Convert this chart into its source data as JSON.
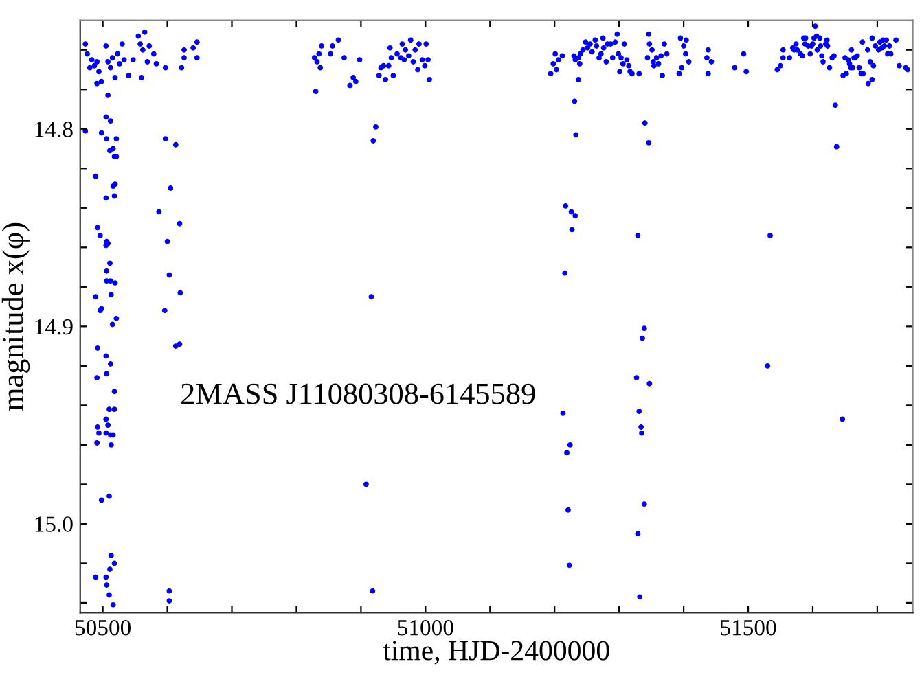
{
  "chart_data": {
    "type": "scatter",
    "xlabel": "time, HJD-2400000",
    "ylabel": "magnitude x(φ)",
    "annotations": [
      "2MASS J11080308-6145589"
    ],
    "xlim": [
      50465,
      51755
    ],
    "ylim": [
      15.045,
      14.745
    ],
    "xticks": [
      50500,
      {
        "value": 50600,
        "label": null
      },
      {
        "value": 50700,
        "label": null
      },
      {
        "value": 50800,
        "label": null
      },
      {
        "value": 50900,
        "label": null
      },
      51000,
      {
        "value": 51100,
        "label": null
      },
      {
        "value": 51200,
        "label": null
      },
      {
        "value": 51300,
        "label": null
      },
      {
        "value": 51400,
        "label": null
      },
      51500,
      {
        "value": 51600,
        "label": null
      },
      {
        "value": 51700,
        "label": null
      }
    ],
    "yticks": [
      {
        "value": 14.76,
        "label": null
      },
      {
        "value": 14.78,
        "label": null
      },
      {
        "value": 14.8,
        "label": "14.8"
      },
      {
        "value": 14.82,
        "label": null
      },
      {
        "value": 14.84,
        "label": null
      },
      {
        "value": 14.86,
        "label": null
      },
      {
        "value": 14.88,
        "label": null
      },
      {
        "value": 14.9,
        "label": "14.9"
      },
      {
        "value": 14.92,
        "label": null
      },
      {
        "value": 14.94,
        "label": null
      },
      {
        "value": 14.96,
        "label": null
      },
      {
        "value": 14.98,
        "label": null
      },
      {
        "value": 15.0,
        "label": "15.0"
      },
      {
        "value": 15.02,
        "label": null
      },
      {
        "value": 15.04,
        "label": null
      }
    ],
    "grid": false,
    "marker": "circle",
    "series": [
      {
        "color": "#0000ff",
        "x": [
          50473,
          50476,
          50483,
          50487,
          50480,
          50491,
          50494,
          50491,
          50498,
          50505,
          50508,
          50512,
          50515,
          50519,
          50523,
          50526,
          50530,
          50533,
          50508,
          50540,
          50547,
          50555,
          50558,
          50562,
          50565,
          50569,
          50572,
          50579,
          50583,
          50560,
          50597,
          50622,
          50626,
          50626,
          50640,
          50646,
          50646,
          50505,
          50512,
          50473,
          50498,
          50506,
          50521,
          50516,
          50511,
          50518,
          50521,
          50489,
          50519,
          50516,
          50505,
          50518,
          50492,
          50496,
          50506,
          50508,
          50505,
          50511,
          50506,
          50506,
          50512,
          50519,
          50513,
          50489,
          50498,
          50496,
          50521,
          50515,
          50492,
          50505,
          50512,
          50506,
          50491,
          50518,
          50510,
          50518,
          50505,
          50508,
          50492,
          50494,
          50505,
          50512,
          50516,
          50491,
          50513,
          50498,
          50510,
          50513,
          50518,
          50511,
          50489,
          50505,
          50506,
          50510,
          50516,
          50597,
          50613,
          50605,
          50587,
          50619,
          50600,
          50603,
          50620,
          50596,
          50619,
          50613,
          50603,
          50603,
          50828,
          50832,
          50835,
          50839,
          50837,
          50830,
          50853,
          50856,
          50865,
          50874,
          50898,
          50888,
          50892,
          50883,
          50928,
          50931,
          50935,
          50938,
          50945,
          50947,
          50943,
          50950,
          50956,
          50962,
          50964,
          50969,
          50974,
          50977,
          50981,
          50984,
          50988,
          50990,
          50995,
          50999,
          51001,
          51004,
          51006,
          50967,
          50923,
          50919,
          50916,
          50908,
          50918,
          51194,
          51198,
          51203,
          51201,
          51206,
          51212,
          51230,
          51232,
          51237,
          51239,
          51240,
          51244,
          51248,
          51251,
          51255,
          51258,
          51263,
          51265,
          51269,
          51272,
          51275,
          51276,
          51280,
          51282,
          51287,
          51290,
          51294,
          51297,
          51299,
          51301,
          51303,
          51306,
          51308,
          51312,
          51315,
          51317,
          51320,
          51331,
          51344,
          51346,
          51347,
          51351,
          51353,
          51354,
          51358,
          51361,
          51365,
          51367,
          51370,
          51374,
          51395,
          51400,
          51404,
          51403,
          51408,
          51393,
          51397,
          51436,
          51438,
          51443,
          51438,
          51237,
          51231,
          51233,
          51340,
          51346,
          51217,
          51226,
          51232,
          51227,
          51329,
          51216,
          51339,
          51336,
          51327,
          51347,
          51213,
          51331,
          51334,
          51335,
          51224,
          51219,
          51221,
          51339,
          51329,
          51223,
          51332,
          51479,
          51493,
          51497,
          51545,
          51550,
          51554,
          51554,
          51564,
          51569,
          51574,
          51576,
          51571,
          51581,
          51584,
          51586,
          51588,
          51589,
          51593,
          51596,
          51598,
          51600,
          51602,
          51604,
          51606,
          51607,
          51611,
          51612,
          51614,
          51616,
          51620,
          51622,
          51623,
          51626,
          51630,
          51633,
          51647,
          51650,
          51652,
          51655,
          51657,
          51659,
          51660,
          51662,
          51664,
          51666,
          51669,
          51672,
          51675,
          51678,
          51677,
          51685,
          51686,
          51689,
          51692,
          51692,
          51694,
          51697,
          51702,
          51704,
          51707,
          51709,
          51711,
          51714,
          51716,
          51719,
          51721,
          51729,
          51734,
          51744,
          51747,
          51635,
          51637,
          51534,
          51530,
          51646
        ],
        "values": [
          14.757,
          14.762,
          14.765,
          14.768,
          14.769,
          14.766,
          14.771,
          14.777,
          14.776,
          14.758,
          14.766,
          14.769,
          14.764,
          14.774,
          14.762,
          14.767,
          14.757,
          14.765,
          14.783,
          14.773,
          14.765,
          14.753,
          14.757,
          14.76,
          14.751,
          14.766,
          14.758,
          14.762,
          14.767,
          14.774,
          14.769,
          14.769,
          14.76,
          14.764,
          14.759,
          14.756,
          14.764,
          14.794,
          14.796,
          14.801,
          14.802,
          14.805,
          14.805,
          14.81,
          14.811,
          14.814,
          14.814,
          14.824,
          14.828,
          14.829,
          14.835,
          14.834,
          14.85,
          14.854,
          14.857,
          14.858,
          14.859,
          14.868,
          14.872,
          14.877,
          14.877,
          14.878,
          14.884,
          14.885,
          14.891,
          14.892,
          14.896,
          14.899,
          14.911,
          14.915,
          14.919,
          14.924,
          14.926,
          14.933,
          14.942,
          14.942,
          14.947,
          14.95,
          14.951,
          14.954,
          14.954,
          14.955,
          14.955,
          14.959,
          14.96,
          14.988,
          14.986,
          15.016,
          15.02,
          15.023,
          15.027,
          15.027,
          15.031,
          15.036,
          15.041,
          14.805,
          14.808,
          14.83,
          14.842,
          14.848,
          14.857,
          14.874,
          14.883,
          14.892,
          14.909,
          14.91,
          15.034,
          15.039,
          14.764,
          14.766,
          14.762,
          14.758,
          14.769,
          14.781,
          14.762,
          14.758,
          14.755,
          14.764,
          14.765,
          14.774,
          14.776,
          14.778,
          14.773,
          14.769,
          14.768,
          14.775,
          14.759,
          14.764,
          14.768,
          14.773,
          14.762,
          14.764,
          14.757,
          14.76,
          14.763,
          14.755,
          14.766,
          14.76,
          14.77,
          14.757,
          14.765,
          14.768,
          14.757,
          14.765,
          14.775,
          14.765,
          14.799,
          14.806,
          14.885,
          14.98,
          15.034,
          14.772,
          14.767,
          14.77,
          14.762,
          14.765,
          14.763,
          14.763,
          14.765,
          14.764,
          14.767,
          14.762,
          14.76,
          14.756,
          14.759,
          14.757,
          14.761,
          14.755,
          14.758,
          14.764,
          14.762,
          14.754,
          14.759,
          14.766,
          14.757,
          14.757,
          14.764,
          14.756,
          14.752,
          14.762,
          14.771,
          14.764,
          14.767,
          14.757,
          14.765,
          14.768,
          14.771,
          14.772,
          14.772,
          14.764,
          14.752,
          14.757,
          14.76,
          14.766,
          14.768,
          14.764,
          14.767,
          14.763,
          14.773,
          14.757,
          14.762,
          14.754,
          14.758,
          14.755,
          14.762,
          14.766,
          14.772,
          14.769,
          14.764,
          14.76,
          14.766,
          14.772,
          14.775,
          14.786,
          14.803,
          14.797,
          14.807,
          14.839,
          14.842,
          14.844,
          14.851,
          14.854,
          14.873,
          14.901,
          14.906,
          14.926,
          14.929,
          14.944,
          14.943,
          14.951,
          14.954,
          14.96,
          14.964,
          14.993,
          14.99,
          15.005,
          15.021,
          15.037,
          14.769,
          14.762,
          14.771,
          14.77,
          14.768,
          14.76,
          14.764,
          14.764,
          14.759,
          14.757,
          14.76,
          14.76,
          14.762,
          14.763,
          14.754,
          14.757,
          14.754,
          14.758,
          14.762,
          14.758,
          14.757,
          14.754,
          14.748,
          14.753,
          14.76,
          14.754,
          14.758,
          14.763,
          14.766,
          14.757,
          14.755,
          14.758,
          14.769,
          14.764,
          14.763,
          14.773,
          14.764,
          14.772,
          14.765,
          14.767,
          14.769,
          14.76,
          14.769,
          14.764,
          14.764,
          14.763,
          14.769,
          14.772,
          14.772,
          14.756,
          14.76,
          14.777,
          14.766,
          14.775,
          14.754,
          14.768,
          14.758,
          14.76,
          14.756,
          14.759,
          14.755,
          14.758,
          14.755,
          14.762,
          14.758,
          14.762,
          14.755,
          14.768,
          14.769,
          14.77,
          14.788,
          14.809,
          14.854,
          14.92,
          14.947
        ]
      }
    ]
  }
}
